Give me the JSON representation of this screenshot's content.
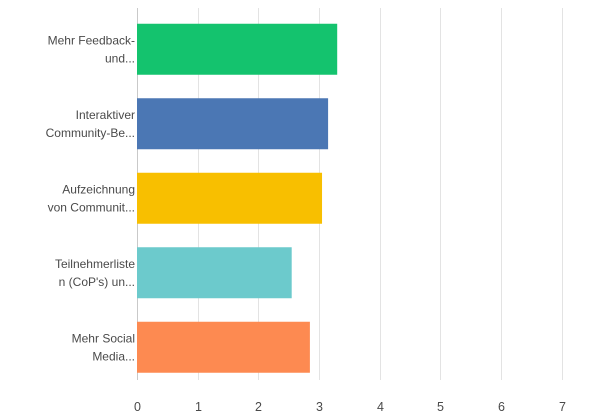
{
  "chart_data": {
    "type": "bar",
    "orientation": "horizontal",
    "categories": [
      [
        "Mehr Feedback-",
        "und..."
      ],
      [
        "Interaktiver",
        "Community-Be..."
      ],
      [
        "Aufzeichnung",
        "von Communit..."
      ],
      [
        "Teilnehmerliste",
        "n (CoP's) un..."
      ],
      [
        "Mehr Social",
        "Media..."
      ]
    ],
    "values": [
      3.3,
      3.15,
      3.05,
      2.55,
      2.85
    ],
    "colors": [
      "#14c36e",
      "#4b77b4",
      "#f8bf00",
      "#6ccacc",
      "#fd8a51"
    ],
    "xlim": [
      0,
      7.5
    ],
    "xticks": [
      0,
      1,
      2,
      3,
      4,
      5,
      6,
      7
    ],
    "grid": true,
    "title": "",
    "xlabel": "",
    "ylabel": ""
  }
}
